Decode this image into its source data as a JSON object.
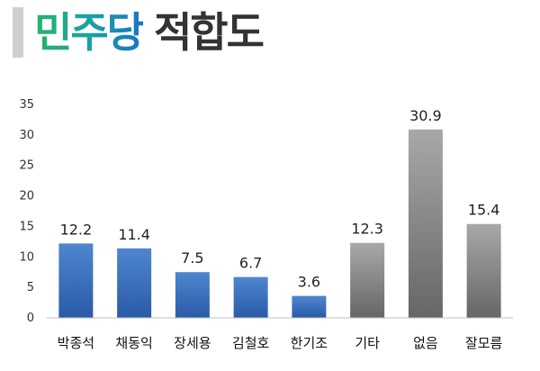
{
  "title": {
    "party": "민주당",
    "rest": "적합도"
  },
  "colors": {
    "accent_bar": "#cfcfcf",
    "candidate_bar_top": "#4f86cf",
    "candidate_bar_bottom": "#2a5aa8",
    "other_bar_top": "#a8a8a8",
    "other_bar_bottom": "#666666"
  },
  "chart_data": {
    "type": "bar",
    "categories": [
      "박종석",
      "채동익",
      "장세용",
      "김철호",
      "한기조",
      "기타",
      "없음",
      "잘모름"
    ],
    "values": [
      12.2,
      11.4,
      7.5,
      6.7,
      3.6,
      12.3,
      30.9,
      15.4
    ],
    "data_labels": [
      "12.2",
      "11.4",
      "7.5",
      "6.7",
      "3.6",
      "12.3",
      "30.9",
      "15.4"
    ],
    "bar_groups": [
      "candidate",
      "candidate",
      "candidate",
      "candidate",
      "candidate",
      "other",
      "other",
      "other"
    ],
    "ylim": [
      0,
      35
    ],
    "yticks": [
      0,
      5,
      10,
      15,
      20,
      25,
      30,
      35
    ],
    "grid": false,
    "legend": "none"
  }
}
